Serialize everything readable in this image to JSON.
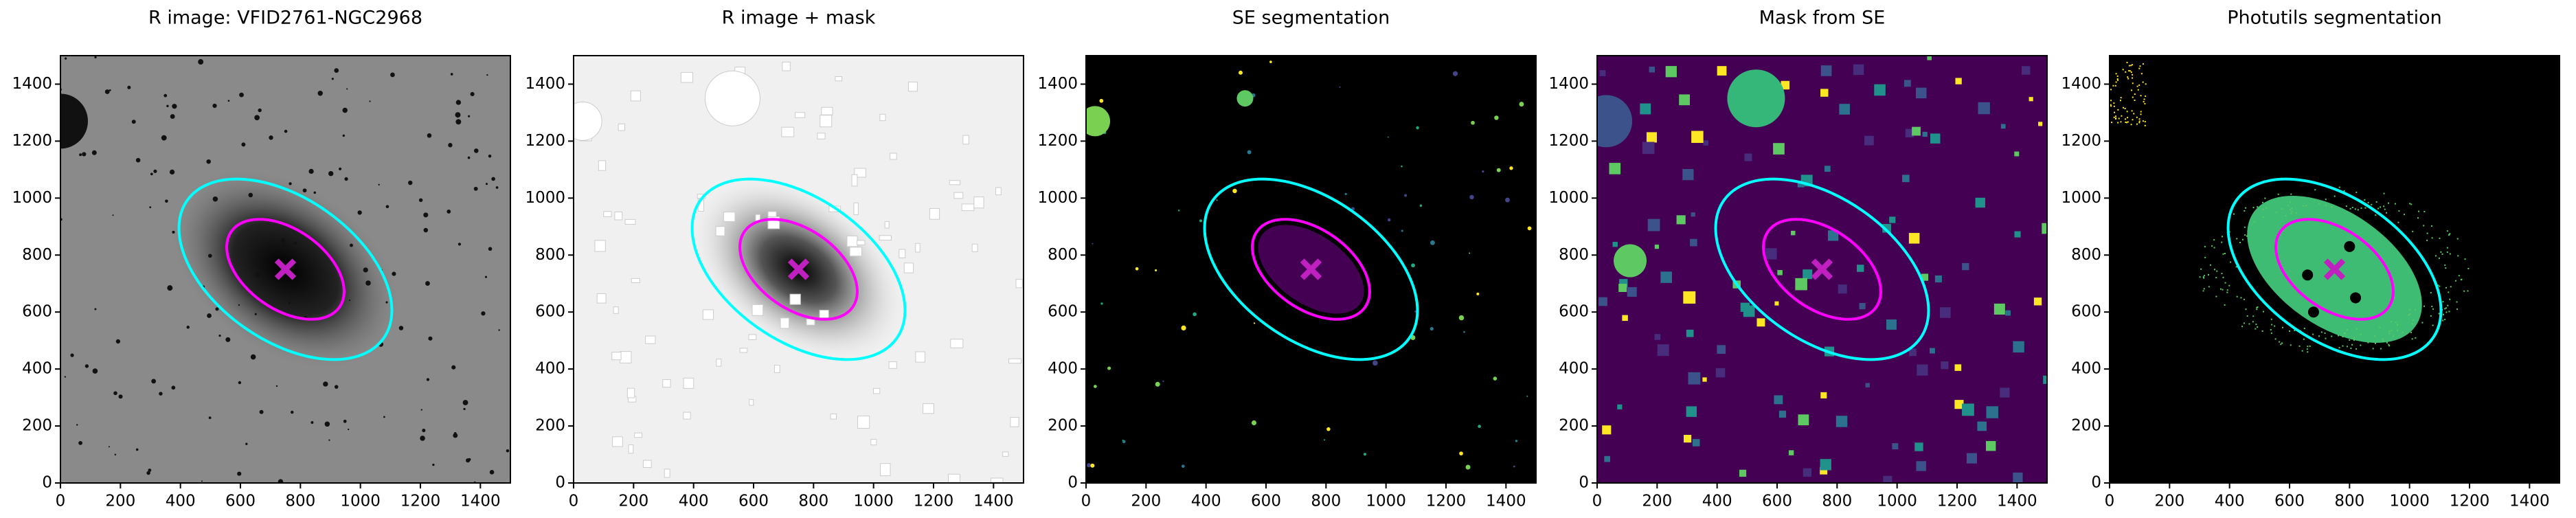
{
  "chart_data": [
    {
      "type": "image",
      "title": "R image: VFID2761-NGC2968",
      "background": "#8a8a8a",
      "xlim": [
        0,
        1500
      ],
      "ylim": [
        0,
        1500
      ],
      "xticks": [
        0,
        200,
        400,
        600,
        800,
        1000,
        1200,
        1400
      ],
      "yticks": [
        0,
        200,
        400,
        600,
        800,
        1000,
        1200,
        1400
      ],
      "ellipses": [
        {
          "color": "#00ffff",
          "cx": 750,
          "cy": 750,
          "a": 400,
          "b": 250,
          "angle": -35
        },
        {
          "color": "#ff00ff",
          "cx": 750,
          "cy": 750,
          "a": 220,
          "b": 140,
          "angle": -35
        }
      ],
      "marker": {
        "x": 750,
        "y": 750,
        "color": "#c020c0"
      }
    },
    {
      "type": "image",
      "title": "R image + mask",
      "background": "#f0f0f0",
      "xlim": [
        0,
        1500
      ],
      "ylim": [
        0,
        1500
      ],
      "xticks": [
        0,
        200,
        400,
        600,
        800,
        1000,
        1200,
        1400
      ],
      "yticks": [
        0,
        200,
        400,
        600,
        800,
        1000,
        1200,
        1400
      ],
      "ellipses": [
        {
          "color": "#00ffff",
          "cx": 750,
          "cy": 750,
          "a": 400,
          "b": 250,
          "angle": -35
        },
        {
          "color": "#ff00ff",
          "cx": 750,
          "cy": 750,
          "a": 220,
          "b": 140,
          "angle": -35
        }
      ],
      "marker": {
        "x": 750,
        "y": 750,
        "color": "#c020c0"
      }
    },
    {
      "type": "image",
      "title": "SE segmentation",
      "background": "#000000",
      "xlim": [
        0,
        1500
      ],
      "ylim": [
        0,
        1500
      ],
      "xticks": [
        0,
        200,
        400,
        600,
        800,
        1000,
        1200,
        1400
      ],
      "yticks": [
        0,
        200,
        400,
        600,
        800,
        1000,
        1200,
        1400
      ],
      "ellipses": [
        {
          "color": "#00ffff",
          "cx": 750,
          "cy": 750,
          "a": 400,
          "b": 250,
          "angle": -35
        },
        {
          "color": "#ff00ff",
          "cx": 750,
          "cy": 750,
          "a": 220,
          "b": 140,
          "angle": -35
        }
      ],
      "marker": {
        "x": 750,
        "y": 750,
        "color": "#c020c0"
      }
    },
    {
      "type": "image",
      "title": "Mask from SE",
      "background": "#440154",
      "xlim": [
        0,
        1500
      ],
      "ylim": [
        0,
        1500
      ],
      "xticks": [
        0,
        200,
        400,
        600,
        800,
        1000,
        1200,
        1400
      ],
      "yticks": [
        0,
        200,
        400,
        600,
        800,
        1000,
        1200,
        1400
      ],
      "ellipses": [
        {
          "color": "#00ffff",
          "cx": 750,
          "cy": 750,
          "a": 400,
          "b": 250,
          "angle": -35
        },
        {
          "color": "#ff00ff",
          "cx": 750,
          "cy": 750,
          "a": 220,
          "b": 140,
          "angle": -35
        }
      ],
      "marker": {
        "x": 750,
        "y": 750,
        "color": "#c020c0"
      }
    },
    {
      "type": "image",
      "title": "Photutils segmentation",
      "background": "#000000",
      "xlim": [
        0,
        1500
      ],
      "ylim": [
        0,
        1500
      ],
      "xticks": [
        0,
        200,
        400,
        600,
        800,
        1000,
        1200,
        1400
      ],
      "yticks": [
        0,
        200,
        400,
        600,
        800,
        1000,
        1200,
        1400
      ],
      "ellipses": [
        {
          "color": "#00ffff",
          "cx": 750,
          "cy": 750,
          "a": 400,
          "b": 250,
          "angle": -35
        },
        {
          "color": "#ff00ff",
          "cx": 750,
          "cy": 750,
          "a": 220,
          "b": 140,
          "angle": -35
        }
      ],
      "marker": {
        "x": 750,
        "y": 750,
        "color": "#c020c0"
      }
    }
  ]
}
